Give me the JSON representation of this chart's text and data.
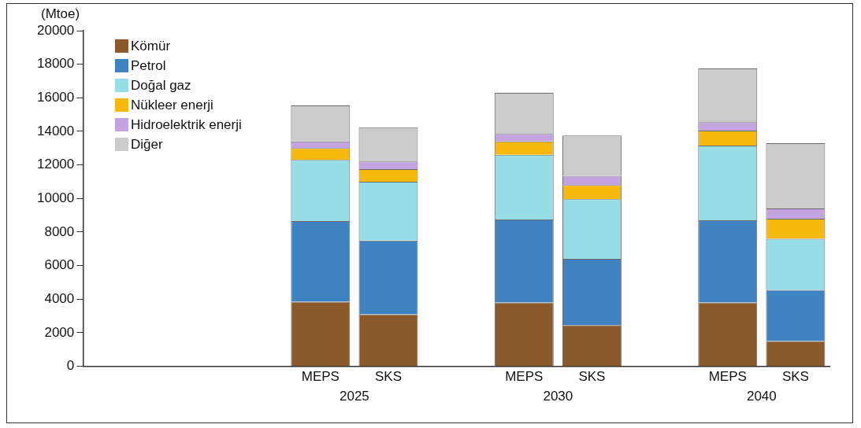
{
  "chart_data": {
    "type": "bar",
    "stacked": true,
    "ylabel": "(Mtoe)",
    "categories": [
      null,
      null,
      null,
      "MEPS",
      "SKS",
      null,
      "MEPS",
      "SKS",
      null,
      "MEPS",
      "SKS"
    ],
    "annotations": [
      "2025",
      "2030",
      "2040"
    ],
    "series": [
      {
        "name": "Kömür",
        "color": "#8b5a2b",
        "values": [
          null,
          null,
          null,
          3850,
          3100,
          null,
          3800,
          2450,
          null,
          3800,
          1500
        ]
      },
      {
        "name": "Petrol",
        "color": "#3f83c3",
        "values": [
          null,
          null,
          null,
          4800,
          4400,
          null,
          4950,
          3950,
          null,
          4900,
          3050
        ]
      },
      {
        "name": "Doğal gaz",
        "color": "#97dde6",
        "values": [
          null,
          null,
          null,
          3650,
          3500,
          null,
          3850,
          3550,
          null,
          4450,
          3050
        ]
      },
      {
        "name": "Nükleer enerji",
        "color": "#f9b90c",
        "values": [
          null,
          null,
          null,
          700,
          750,
          null,
          800,
          850,
          null,
          900,
          1200
        ]
      },
      {
        "name": "Hidroelektrik enerji",
        "color": "#c3a3e0",
        "values": [
          null,
          null,
          null,
          400,
          450,
          null,
          450,
          550,
          null,
          500,
          600
        ]
      },
      {
        "name": "Diğer",
        "color": "#cccccc",
        "values": [
          null,
          null,
          null,
          2150,
          2050,
          null,
          2450,
          2400,
          null,
          3200,
          3900
        ]
      }
    ],
    "ylim": [
      0,
      20000
    ],
    "yticks": [
      0,
      2000,
      4000,
      6000,
      8000,
      10000,
      12000,
      14000,
      16000,
      18000,
      20000
    ],
    "grid": false,
    "legend": "top left"
  }
}
